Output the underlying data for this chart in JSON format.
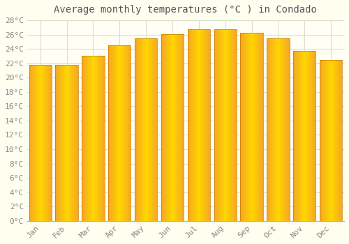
{
  "title": "Average monthly temperatures (°C ) in Condado",
  "months": [
    "Jan",
    "Feb",
    "Mar",
    "Apr",
    "May",
    "Jun",
    "Jul",
    "Aug",
    "Sep",
    "Oct",
    "Nov",
    "Dec"
  ],
  "values": [
    21.8,
    21.8,
    23.0,
    24.5,
    25.5,
    26.1,
    26.7,
    26.7,
    26.3,
    25.5,
    23.7,
    22.5
  ],
  "bar_color_center": "#FFD700",
  "bar_color_edge": "#F5A623",
  "ylim": [
    0,
    28
  ],
  "ytick_step": 2,
  "background_color": "#FFFFF0",
  "plot_bg_color": "#FFFFF5",
  "grid_color": "#ddddcc",
  "title_fontsize": 10,
  "tick_fontsize": 8,
  "bar_width": 0.85
}
